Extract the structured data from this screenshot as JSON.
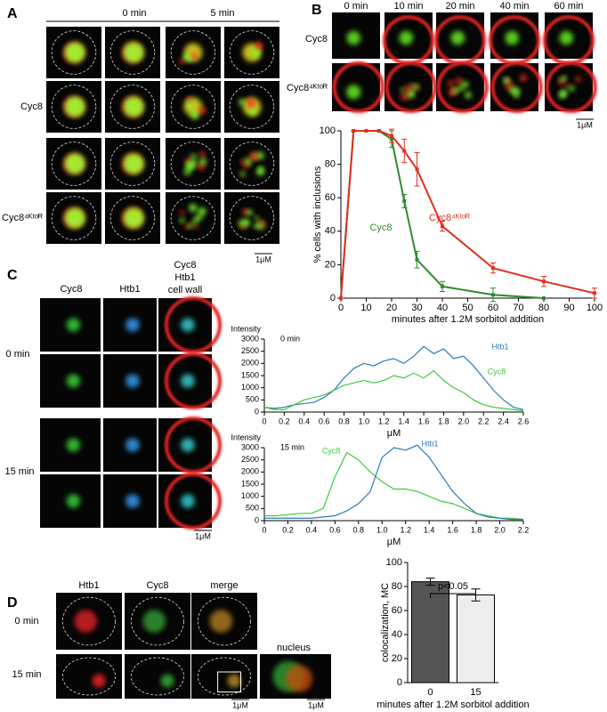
{
  "panel_labels": [
    "A",
    "B",
    "C",
    "D"
  ],
  "panel_a": {
    "columns": [
      "0 min",
      "5 min"
    ],
    "rows": [
      "Cyc8",
      "Cyc8⁴ᴷᵗᵒᴿ"
    ],
    "scale_bar": "1μM"
  },
  "panel_b": {
    "columns": [
      "0 min",
      "10 min",
      "20 min",
      "40 min",
      "60 min"
    ],
    "rows": [
      "Cyc8",
      "Cyc8⁴ᴷᵗᵒᴿ"
    ],
    "scale_bar": "1μM"
  },
  "panel_c": {
    "columns": [
      "Cyc8",
      "Htb1"
    ],
    "overlay_header": [
      "Cyc8",
      "Htb1",
      "cell wall"
    ],
    "rows": [
      "0 min",
      "15 min"
    ],
    "scale_bar": "1μM"
  },
  "panel_d": {
    "columns": [
      "Htb1",
      "Cyc8",
      "merge"
    ],
    "inset": "nucleus",
    "rows": [
      "0 min",
      "15 min"
    ],
    "scale_bars": [
      "1μM",
      "1μM"
    ]
  },
  "chart_data": [
    {
      "type": "line",
      "x_label": "minutes after 1.2M sorbitol addition",
      "y_label": "% cells with inclusions",
      "xlim": [
        0,
        100
      ],
      "xticks": [
        0,
        10,
        20,
        30,
        40,
        50,
        60,
        70,
        80,
        90,
        100
      ],
      "ylim": [
        0,
        100
      ],
      "yticks": [
        0,
        20,
        40,
        60,
        80,
        100
      ],
      "series": [
        {
          "name": "Cyc8",
          "color": "#2e8b2e",
          "x": [
            0,
            5,
            10,
            15,
            20,
            25,
            30,
            40,
            60,
            80
          ],
          "values": [
            0,
            100,
            100,
            100,
            95,
            58,
            23,
            7,
            2,
            0
          ],
          "errors": [
            0,
            0,
            0,
            0,
            5,
            4,
            5,
            3,
            4,
            0
          ]
        },
        {
          "name": "Cyc8⁴ᴷᵗᵒᴿ",
          "color": "#e0301e",
          "x": [
            0,
            5,
            10,
            15,
            20,
            25,
            30,
            40,
            60,
            80,
            100
          ],
          "values": [
            0,
            100,
            100,
            100,
            97,
            88,
            77,
            43,
            18,
            10,
            3
          ],
          "errors": [
            0,
            0,
            0,
            0,
            4,
            7,
            10,
            3,
            3,
            3,
            3
          ]
        }
      ]
    },
    {
      "type": "line",
      "title": "0 min",
      "y_label": "Intensity",
      "x_label": "μM",
      "xlim": [
        0,
        2.6
      ],
      "xticks": [
        0,
        0.2,
        0.4,
        0.6,
        0.8,
        {
          "value": 1,
          "label": "1.0"
        },
        1.2,
        1.4,
        1.6,
        1.8,
        {
          "value": 2,
          "label": "2.0"
        },
        2.2,
        2.4,
        2.6
      ],
      "ylim": [
        0,
        3000
      ],
      "yticks": [
        0,
        500,
        1000,
        1500,
        2000,
        2500,
        3000
      ],
      "series": [
        {
          "name": "Htb1",
          "color": "#2b7bb9",
          "x": [
            0,
            0.1,
            0.2,
            0.3,
            0.4,
            0.5,
            0.6,
            0.7,
            0.8,
            0.9,
            1,
            1.1,
            1.2,
            1.3,
            1.4,
            1.5,
            1.6,
            1.7,
            1.8,
            1.9,
            2,
            2.1,
            2.2,
            2.3,
            2.4,
            2.5,
            2.6
          ],
          "values": [
            200,
            150,
            200,
            300,
            350,
            400,
            600,
            900,
            1400,
            1800,
            2000,
            1900,
            2100,
            2200,
            2000,
            2300,
            2700,
            2400,
            2600,
            2200,
            2300,
            1900,
            1400,
            900,
            500,
            200,
            100
          ]
        },
        {
          "name": "Cyc8",
          "color": "#3ec93e",
          "x": [
            0,
            0.1,
            0.2,
            0.3,
            0.4,
            0.5,
            0.6,
            0.7,
            0.8,
            0.9,
            1,
            1.1,
            1.2,
            1.3,
            1.4,
            1.5,
            1.6,
            1.7,
            1.8,
            1.9,
            2,
            2.1,
            2.2,
            2.3,
            2.4,
            2.5,
            2.6
          ],
          "values": [
            200,
            100,
            100,
            300,
            500,
            600,
            700,
            900,
            1100,
            1200,
            1300,
            1200,
            1300,
            1500,
            1400,
            1600,
            1400,
            1700,
            1300,
            1000,
            800,
            500,
            300,
            200,
            150,
            100,
            50
          ]
        }
      ]
    },
    {
      "type": "line",
      "title": "15 min",
      "y_label": "Intensity",
      "x_label": "μM",
      "xlim": [
        0,
        2.2
      ],
      "xticks": [
        0,
        0.2,
        0.4,
        0.6,
        0.8,
        {
          "value": 1,
          "label": "1.0"
        },
        1.2,
        1.4,
        1.6,
        1.8,
        {
          "value": 2,
          "label": "2.0"
        },
        2.2
      ],
      "ylim": [
        0,
        3000
      ],
      "yticks": [
        0,
        500,
        1000,
        1500,
        2000,
        2500,
        3000
      ],
      "series": [
        {
          "name": "Cyc8",
          "color": "#3ec93e",
          "x": [
            0,
            0.1,
            0.2,
            0.3,
            0.4,
            0.5,
            0.6,
            0.7,
            0.8,
            0.9,
            1,
            1.1,
            1.2,
            1.3,
            1.4,
            1.5,
            1.6,
            1.7,
            1.8,
            1.9,
            2,
            2.1,
            2.2
          ],
          "values": [
            200,
            200,
            250,
            300,
            300,
            500,
            1800,
            2800,
            2500,
            2000,
            1600,
            1300,
            1300,
            1200,
            1000,
            800,
            700,
            500,
            300,
            200,
            100,
            100,
            50
          ]
        },
        {
          "name": "Htb1",
          "color": "#2b7bb9",
          "x": [
            0,
            0.1,
            0.2,
            0.3,
            0.4,
            0.5,
            0.6,
            0.7,
            0.8,
            0.9,
            1,
            1.1,
            1.2,
            1.3,
            1.4,
            1.5,
            1.6,
            1.7,
            1.8,
            1.9,
            2,
            2.1,
            2.2
          ],
          "values": [
            100,
            100,
            100,
            100,
            100,
            150,
            200,
            400,
            700,
            1200,
            2600,
            3000,
            2900,
            3100,
            2600,
            1900,
            1200,
            700,
            300,
            150,
            100,
            50,
            50
          ]
        }
      ]
    },
    {
      "type": "bar",
      "x_label": "minutes after 1.2M sorbitol addition",
      "y_label": "colocalization, MC",
      "annotation": "p<0.05",
      "categories": [
        "0",
        "15"
      ],
      "values": [
        84,
        73
      ],
      "errors": [
        3,
        5
      ],
      "colors": [
        "#555555",
        "#eeeeee"
      ],
      "ylim": [
        0,
        100
      ],
      "yticks": [
        0,
        20,
        40,
        60,
        80,
        100
      ]
    }
  ]
}
